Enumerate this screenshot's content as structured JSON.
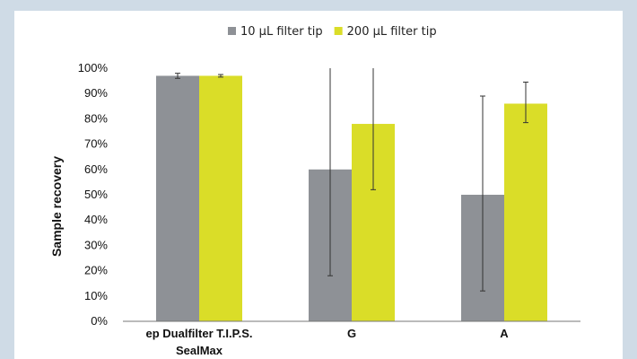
{
  "chart_data": {
    "type": "bar",
    "ylabel": "Sample recovery",
    "xlabel": "",
    "ylim": [
      0,
      100
    ],
    "yticks": [
      "0%",
      "10%",
      "20%",
      "30%",
      "40%",
      "50%",
      "60%",
      "70%",
      "80%",
      "90%",
      "100%"
    ],
    "categories": [
      [
        "ep Dualfilter T.I.P.S.",
        "SealMax"
      ],
      [
        "G"
      ],
      [
        "A"
      ]
    ],
    "series": [
      {
        "name": "10 µL filter tip",
        "color": "#8e9196",
        "values": [
          97,
          60,
          50
        ],
        "error_low": [
          96,
          18,
          12
        ],
        "error_high": [
          98,
          100,
          89
        ]
      },
      {
        "name": "200 µL filter tip",
        "color": "#dadd28",
        "values": [
          97,
          78,
          86
        ],
        "error_low": [
          96.5,
          52,
          78.5
        ],
        "error_high": [
          97.5,
          100,
          94.5
        ]
      }
    ],
    "legend_position": "top-center",
    "grid": false
  }
}
